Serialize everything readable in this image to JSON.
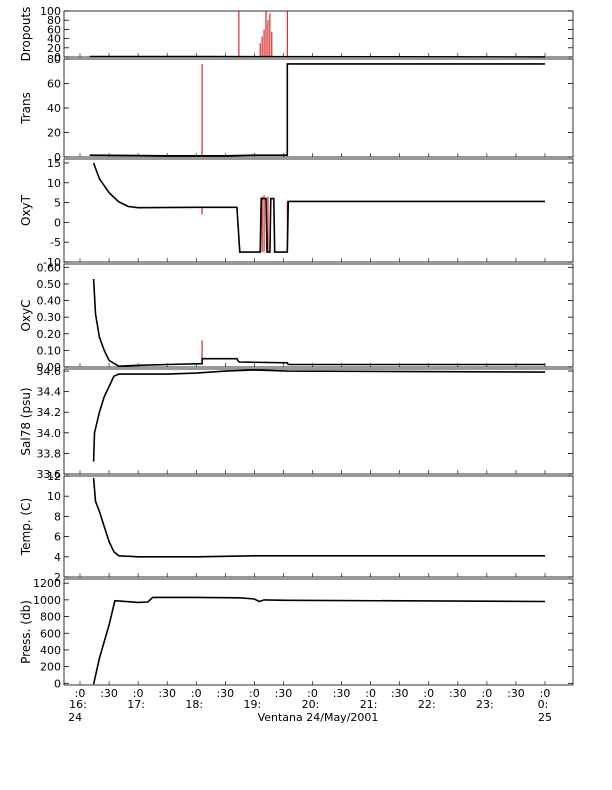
{
  "chart_data": {
    "type": "line",
    "title": "",
    "xlabel": "Ventana 24/May/2001",
    "x_range": [
      "2001-05-24T16:00",
      "2001-05-25T00:30"
    ],
    "x_ticks": [
      {
        "time": "2001-05-24T16:00",
        "top": ":0",
        "bottom": "16:"
      },
      {
        "time": "2001-05-24T16:30",
        "top": ":30",
        "bottom": ""
      },
      {
        "time": "2001-05-24T17:00",
        "top": ":0",
        "bottom": "17:"
      },
      {
        "time": "2001-05-24T17:30",
        "top": ":30",
        "bottom": ""
      },
      {
        "time": "2001-05-24T18:00",
        "top": ":0",
        "bottom": "18:"
      },
      {
        "time": "2001-05-24T18:30",
        "top": ":30",
        "bottom": ""
      },
      {
        "time": "2001-05-24T19:00",
        "top": ":0",
        "bottom": "19:"
      },
      {
        "time": "2001-05-24T19:30",
        "top": ":30",
        "bottom": ""
      },
      {
        "time": "2001-05-24T20:00",
        "top": ":0",
        "bottom": "20:"
      },
      {
        "time": "2001-05-24T20:30",
        "top": ":30",
        "bottom": ""
      },
      {
        "time": "2001-05-24T21:00",
        "top": ":0",
        "bottom": "21:"
      },
      {
        "time": "2001-05-24T21:30",
        "top": ":30",
        "bottom": ""
      },
      {
        "time": "2001-05-24T22:00",
        "top": ":0",
        "bottom": "22:"
      },
      {
        "time": "2001-05-24T22:30",
        "top": ":30",
        "bottom": ""
      },
      {
        "time": "2001-05-24T23:00",
        "top": ":0",
        "bottom": "23:"
      },
      {
        "time": "2001-05-24T23:30",
        "top": ":30",
        "bottom": ""
      },
      {
        "time": "2001-05-25T00:00",
        "top": ":0",
        "bottom": "0:"
      }
    ],
    "day_labels": [
      {
        "time": "2001-05-24T15:55",
        "text": "24"
      },
      {
        "time": "2001-05-25T00:00",
        "text": "25"
      }
    ],
    "colors": {
      "main": "#000000",
      "raw": "#cc0000"
    },
    "panels": [
      {
        "ylabel": "Dropouts",
        "ylim": [
          0,
          100
        ],
        "yticks": [
          "100",
          "80",
          "60",
          "40",
          "20",
          "0"
        ],
        "ytick_values": [
          100,
          80,
          60,
          40,
          20,
          0
        ],
        "series": [
          {
            "style": "line",
            "points": [
              [
                "2001-05-24T16:10",
                0.9
              ],
              [
                "2001-05-24T18:00",
                0.9
              ],
              [
                "2001-05-25T00:00",
                0.2
              ]
            ]
          }
        ],
        "spikes": [
          {
            "time": "2001-05-24T18:44",
            "from": 0,
            "to": 100
          },
          {
            "time": "2001-05-24T19:06",
            "from": 0,
            "to": 30
          },
          {
            "time": "2001-05-24T19:08",
            "from": 0,
            "to": 45
          },
          {
            "time": "2001-05-24T19:10",
            "from": 0,
            "to": 60
          },
          {
            "time": "2001-05-24T19:12",
            "from": 0,
            "to": 100
          },
          {
            "time": "2001-05-24T19:14",
            "from": 0,
            "to": 80
          },
          {
            "time": "2001-05-24T19:16",
            "from": 0,
            "to": 95
          },
          {
            "time": "2001-05-24T19:18",
            "from": 0,
            "to": 55
          },
          {
            "time": "2001-05-24T19:34",
            "from": 0,
            "to": 100
          }
        ]
      },
      {
        "ylabel": "Trans",
        "ylim": [
          0,
          80
        ],
        "yticks": [
          "80",
          "60",
          "40",
          "20",
          "0"
        ],
        "ytick_values": [
          80,
          60,
          40,
          20,
          0
        ],
        "series": [
          {
            "style": "line",
            "points": [
              [
                "2001-05-24T16:10",
                1.5
              ],
              [
                "2001-05-24T17:00",
                1.2
              ],
              [
                "2001-05-24T17:30",
                1.0
              ],
              [
                "2001-05-24T18:00",
                1.0
              ],
              [
                "2001-05-24T18:30",
                1.0
              ],
              [
                "2001-05-24T19:00",
                1.5
              ],
              [
                "2001-05-24T19:34",
                1.5
              ],
              [
                "2001-05-24T19:34",
                76
              ],
              [
                "2001-05-25T00:00",
                76
              ]
            ]
          }
        ],
        "spikes": [
          {
            "time": "2001-05-24T18:06",
            "from": 1,
            "to": 76
          },
          {
            "time": "2001-05-24T19:34",
            "from": 1.5,
            "to": 76
          }
        ]
      },
      {
        "ylabel": "OxyT",
        "ylim": [
          -10,
          16
        ],
        "yticks": [
          "15",
          "10",
          "5",
          "0",
          "-5",
          "-10"
        ],
        "ytick_values": [
          15,
          10,
          5,
          0,
          -5,
          -10
        ],
        "series": [
          {
            "style": "line",
            "points": [
              [
                "2001-05-24T16:14",
                15
              ],
              [
                "2001-05-24T16:20",
                11
              ],
              [
                "2001-05-24T16:30",
                7.5
              ],
              [
                "2001-05-24T16:40",
                5.2
              ],
              [
                "2001-05-24T16:50",
                4.0
              ],
              [
                "2001-05-24T17:00",
                3.7
              ],
              [
                "2001-05-24T18:00",
                3.8
              ],
              [
                "2001-05-24T18:42",
                3.8
              ],
              [
                "2001-05-24T18:45",
                -7.5
              ],
              [
                "2001-05-24T19:06",
                -7.5
              ],
              [
                "2001-05-24T19:07",
                6
              ],
              [
                "2001-05-24T19:12",
                6
              ],
              [
                "2001-05-24T19:13",
                -7.5
              ],
              [
                "2001-05-24T19:16",
                -7.5
              ],
              [
                "2001-05-24T19:17",
                6
              ],
              [
                "2001-05-24T19:20",
                6
              ],
              [
                "2001-05-24T19:21",
                -7.5
              ],
              [
                "2001-05-24T19:34",
                -7.5
              ],
              [
                "2001-05-24T19:35",
                5.3
              ],
              [
                "2001-05-25T00:00",
                5.3
              ]
            ]
          }
        ],
        "spikes": [
          {
            "time": "2001-05-24T18:06",
            "from": 2.0,
            "to": 4.0
          },
          {
            "time": "2001-05-24T19:08",
            "from": -7.5,
            "to": 6.5
          },
          {
            "time": "2001-05-24T19:10",
            "from": -7.5,
            "to": 6.8
          },
          {
            "time": "2001-05-24T19:14",
            "from": -7.5,
            "to": 6.5
          },
          {
            "time": "2001-05-24T19:34",
            "from": -7.5,
            "to": 5.3
          }
        ]
      },
      {
        "ylabel": "OxyC",
        "ylim": [
          0,
          0.62
        ],
        "yticks": [
          "0.60",
          "0.50",
          "0.40",
          "0.30",
          "0.20",
          "0.10",
          "0.00"
        ],
        "ytick_values": [
          0.6,
          0.5,
          0.4,
          0.3,
          0.2,
          0.1,
          0.0
        ],
        "series": [
          {
            "style": "line",
            "points": [
              [
                "2001-05-24T16:14",
                0.53
              ],
              [
                "2001-05-24T16:16",
                0.32
              ],
              [
                "2001-05-24T16:20",
                0.18
              ],
              [
                "2001-05-24T16:25",
                0.1
              ],
              [
                "2001-05-24T16:30",
                0.04
              ],
              [
                "2001-05-24T16:40",
                0.005
              ],
              [
                "2001-05-24T17:00",
                0.01
              ],
              [
                "2001-05-24T17:30",
                0.015
              ],
              [
                "2001-05-24T18:06",
                0.02
              ],
              [
                "2001-05-24T18:06",
                0.05
              ],
              [
                "2001-05-24T18:42",
                0.05
              ],
              [
                "2001-05-24T18:44",
                0.03
              ],
              [
                "2001-05-24T19:34",
                0.025
              ],
              [
                "2001-05-24T19:35",
                0.015
              ],
              [
                "2001-05-25T00:00",
                0.015
              ]
            ]
          }
        ],
        "spikes": [
          {
            "time": "2001-05-24T18:06",
            "from": 0.02,
            "to": 0.16
          }
        ]
      },
      {
        "ylabel": "Sal78 (psu)",
        "ylim": [
          33.6,
          34.62
        ],
        "yticks": [
          "34.6",
          "34.4",
          "34.2",
          "34.0",
          "33.8",
          "33.6"
        ],
        "ytick_values": [
          34.6,
          34.4,
          34.2,
          34.0,
          33.8,
          33.6
        ],
        "series": [
          {
            "style": "line",
            "points": [
              [
                "2001-05-24T16:14",
                33.72
              ],
              [
                "2001-05-24T16:15",
                34.0
              ],
              [
                "2001-05-24T16:20",
                34.2
              ],
              [
                "2001-05-24T16:25",
                34.35
              ],
              [
                "2001-05-24T16:30",
                34.45
              ],
              [
                "2001-05-24T16:35",
                34.55
              ],
              [
                "2001-05-24T16:40",
                34.57
              ],
              [
                "2001-05-24T17:00",
                34.57
              ],
              [
                "2001-05-24T17:30",
                34.57
              ],
              [
                "2001-05-24T18:00",
                34.58
              ],
              [
                "2001-05-24T18:30",
                34.6
              ],
              [
                "2001-05-24T19:00",
                34.61
              ],
              [
                "2001-05-24T19:34",
                34.6
              ],
              [
                "2001-05-25T00:00",
                34.59
              ]
            ]
          }
        ],
        "spikes": []
      },
      {
        "ylabel": "Temp. (C)",
        "ylim": [
          2,
          12
        ],
        "yticks": [
          "12",
          "10",
          "8",
          "6",
          "4",
          "2"
        ],
        "ytick_values": [
          12,
          10,
          8,
          6,
          4,
          2
        ],
        "series": [
          {
            "style": "line",
            "points": [
              [
                "2001-05-24T16:14",
                11.8
              ],
              [
                "2001-05-24T16:16",
                9.5
              ],
              [
                "2001-05-24T16:20",
                8.5
              ],
              [
                "2001-05-24T16:25",
                7.0
              ],
              [
                "2001-05-24T16:30",
                5.5
              ],
              [
                "2001-05-24T16:35",
                4.5
              ],
              [
                "2001-05-24T16:40",
                4.1
              ],
              [
                "2001-05-24T17:00",
                4.0
              ],
              [
                "2001-05-24T18:00",
                4.0
              ],
              [
                "2001-05-24T19:00",
                4.1
              ],
              [
                "2001-05-24T19:34",
                4.1
              ],
              [
                "2001-05-25T00:00",
                4.1
              ]
            ]
          }
        ],
        "spikes": []
      },
      {
        "ylabel": "Press. (db)",
        "ylim": [
          -20,
          1250
        ],
        "yticks": [
          "1200",
          "1000",
          "800",
          "600",
          "400",
          "200",
          "0"
        ],
        "ytick_values": [
          1200,
          1000,
          800,
          600,
          400,
          200,
          0
        ],
        "series": [
          {
            "style": "line",
            "points": [
              [
                "2001-05-24T16:14",
                -10
              ],
              [
                "2001-05-24T16:20",
                300
              ],
              [
                "2001-05-24T16:30",
                700
              ],
              [
                "2001-05-24T16:36",
                990
              ],
              [
                "2001-05-24T17:00",
                970
              ],
              [
                "2001-05-24T17:10",
                975
              ],
              [
                "2001-05-24T17:15",
                1030
              ],
              [
                "2001-05-24T18:00",
                1030
              ],
              [
                "2001-05-24T18:45",
                1025
              ],
              [
                "2001-05-24T19:00",
                1010
              ],
              [
                "2001-05-24T19:05",
                980
              ],
              [
                "2001-05-24T19:10",
                1000
              ],
              [
                "2001-05-24T19:34",
                995
              ],
              [
                "2001-05-25T00:00",
                980
              ]
            ]
          }
        ],
        "spikes": []
      }
    ]
  }
}
